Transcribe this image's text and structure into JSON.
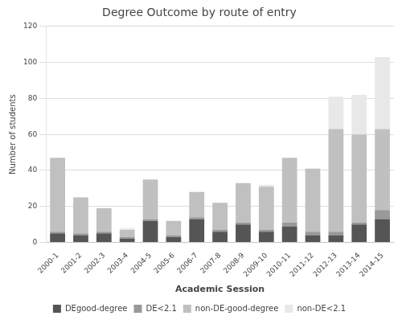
{
  "chart_data": {
    "type": "bar",
    "title": "Degree Outcome by route of entry",
    "xlabel": "Academic Session",
    "ylabel": "Number of students",
    "categories": [
      "2000-1",
      "2001-2",
      "2002-3",
      "2003-4",
      "2004-5",
      "2005-6",
      "2006-7",
      "2007-8",
      "2008-9",
      "2009-10",
      "2010-11",
      "2011-12",
      "2012-13",
      "2013-14",
      "2014-15"
    ],
    "series": [
      {
        "name": "DEgood-degree",
        "color": "#555555",
        "values": [
          5,
          4,
          5,
          2,
          12,
          3,
          13,
          6,
          10,
          6,
          9,
          4,
          4,
          10,
          13
        ]
      },
      {
        "name": "DE<2.1",
        "color": "#999999",
        "values": [
          1,
          1,
          1,
          1,
          1,
          1,
          1,
          1,
          1,
          1,
          2,
          2,
          2,
          1,
          5
        ]
      },
      {
        "name": "non-DE-good-degree",
        "color": "#c0c0c0",
        "values": [
          41,
          20,
          13,
          4,
          22,
          8,
          14,
          15,
          22,
          24,
          36,
          35,
          57,
          49,
          45
        ]
      },
      {
        "name": "non-DE<2.1",
        "color": "#e8e8e8",
        "values": [
          0,
          0,
          0,
          1,
          0,
          0,
          0,
          0,
          0,
          1,
          0,
          0,
          18,
          22,
          40
        ]
      }
    ],
    "stacked": true,
    "ylim": [
      0,
      120
    ],
    "yticks": [
      0,
      20,
      40,
      60,
      80,
      100,
      120
    ],
    "grid": true,
    "legend": "bottom"
  }
}
